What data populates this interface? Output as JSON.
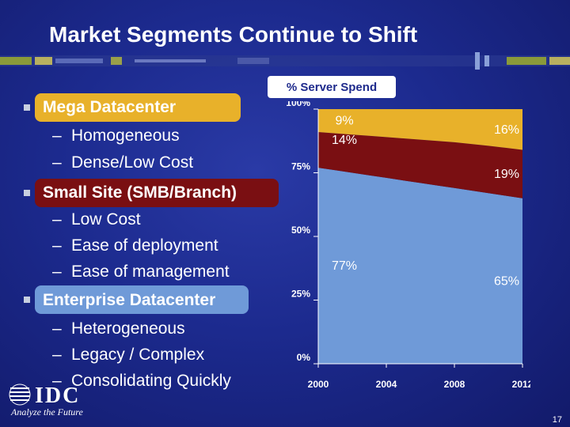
{
  "slide": {
    "title": "Market Segments Continue to Shift",
    "page_number": "17",
    "logo_text": "IDC",
    "tagline": "Analyze the Future"
  },
  "segments": [
    {
      "label": "Mega Datacenter",
      "points": [
        "Homogeneous",
        "Dense/Low Cost"
      ]
    },
    {
      "label": "Small Site (SMB/Branch)",
      "points": [
        "Low Cost",
        "Ease of deployment",
        "Ease of management"
      ]
    },
    {
      "label": "Enterprise Datacenter",
      "points": [
        "Heterogeneous",
        "Legacy / Complex",
        "Consolidating Quickly"
      ]
    }
  ],
  "colors": {
    "mega": "#e8b12a",
    "small": "#7a0f12",
    "enterprise": "#6f9ad8",
    "background": "#1c2a8e"
  },
  "chart_data": {
    "type": "area",
    "title": "% Server Spend",
    "x": [
      2000,
      2001,
      2002,
      2003,
      2004,
      2005,
      2006,
      2007,
      2008,
      2009,
      2010,
      2011,
      2012
    ],
    "xticks": [
      "2000",
      "2004",
      "2008",
      "2012"
    ],
    "ylim": [
      0,
      100
    ],
    "yticks": [
      "0%",
      "25%",
      "50%",
      "75%",
      "100%"
    ],
    "series": [
      {
        "name": "Enterprise Datacenter",
        "values": [
          77,
          76,
          75,
          74,
          73,
          72,
          71,
          70,
          69,
          68,
          67,
          66,
          65
        ]
      },
      {
        "name": "Small Site (SMB/Branch)",
        "values": [
          14,
          14.5,
          15,
          15.5,
          16,
          16.5,
          17,
          17.5,
          18,
          18.3,
          18.6,
          18.8,
          19
        ]
      },
      {
        "name": "Mega Datacenter",
        "values": [
          9,
          9.5,
          10,
          10.5,
          11,
          11.5,
          12,
          12.5,
          13,
          13.7,
          14.4,
          15.2,
          16
        ]
      }
    ],
    "data_labels": [
      {
        "text": "9%",
        "series": "Mega Datacenter",
        "year": 2000
      },
      {
        "text": "16%",
        "series": "Mega Datacenter",
        "year": 2012
      },
      {
        "text": "14%",
        "series": "Small Site (SMB/Branch)",
        "year": 2000
      },
      {
        "text": "19%",
        "series": "Small Site (SMB/Branch)",
        "year": 2012
      },
      {
        "text": "77%",
        "series": "Enterprise Datacenter",
        "year": 2000
      },
      {
        "text": "65%",
        "series": "Enterprise Datacenter",
        "year": 2012
      }
    ]
  }
}
